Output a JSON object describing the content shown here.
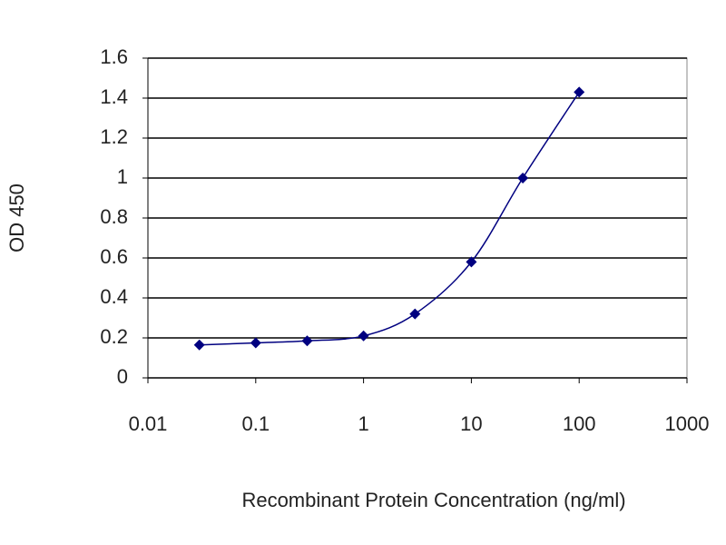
{
  "chart_data": {
    "type": "line",
    "x_label": "Recombinant Protein Concentration (ng/ml)",
    "y_label": "OD 450",
    "x": [
      0.03,
      0.1,
      0.3,
      1,
      3,
      10,
      30,
      100
    ],
    "values": [
      0.165,
      0.175,
      0.185,
      0.21,
      0.32,
      0.58,
      1.0,
      1.43
    ],
    "color": "#000080",
    "x_log": true,
    "xlim": [
      0.01,
      1000
    ],
    "xticks": [
      0.01,
      0.1,
      1,
      10,
      100,
      1000
    ],
    "ylim": [
      0,
      1.6
    ],
    "yticks": [
      0,
      0.2,
      0.4,
      0.6,
      0.8,
      1,
      1.2,
      1.4,
      1.6
    ],
    "grid": true
  }
}
